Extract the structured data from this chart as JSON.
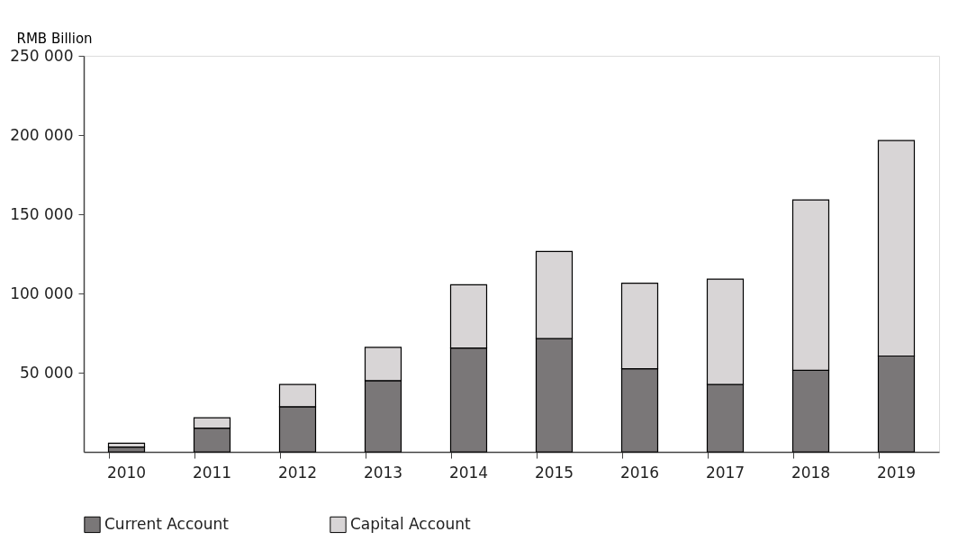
{
  "chart_data": {
    "type": "bar",
    "stacked": true,
    "ylabel": "RMB Billion",
    "categories": [
      "2010",
      "2011",
      "2012",
      "2013",
      "2014",
      "2015",
      "2016",
      "2017",
      "2018",
      "2019"
    ],
    "series": [
      {
        "name": "Current Account",
        "color": "#7a7778",
        "values": [
          3000,
          15000,
          28500,
          45000,
          65500,
          71500,
          52500,
          42500,
          51500,
          60500
        ]
      },
      {
        "name": "Capital Account",
        "color": "#d8d5d6",
        "values": [
          2500,
          6500,
          14000,
          21000,
          40000,
          55000,
          54000,
          66500,
          107500,
          136000
        ]
      }
    ],
    "ylim": [
      0,
      250000
    ],
    "yticks": [
      {
        "value": 50000,
        "label": "50 000"
      },
      {
        "value": 100000,
        "label": "100 000"
      },
      {
        "value": 150000,
        "label": "150 000"
      },
      {
        "value": 200000,
        "label": "200 000"
      },
      {
        "value": 250000,
        "label": "250 000"
      }
    ],
    "grid": false,
    "legend": "bottom"
  }
}
